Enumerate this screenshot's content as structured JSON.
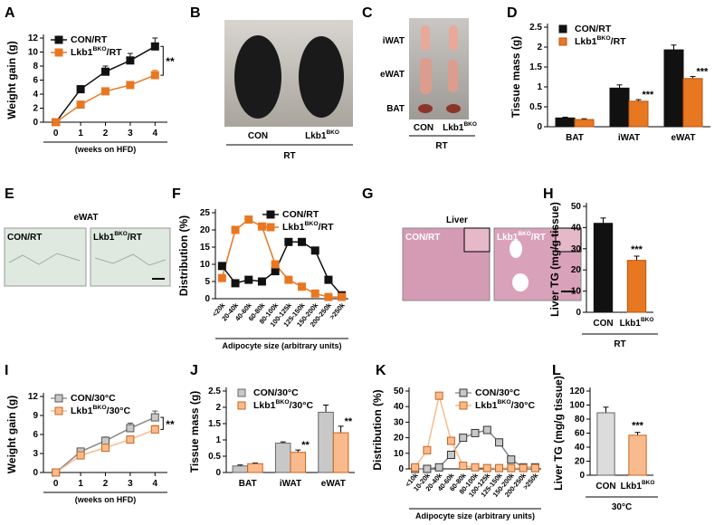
{
  "superscript": "BKO",
  "chart_data": [
    {
      "type": "line",
      "label": "A",
      "ylabel": "Weight gain (g)",
      "xlabel": "(weeks on HFD)",
      "x": [
        0,
        1,
        2,
        3,
        4
      ],
      "xlim": [
        -0.5,
        4.5
      ],
      "xticks": [
        0,
        1,
        2,
        3,
        4
      ],
      "ylim": [
        0,
        12
      ],
      "yticks": [
        0,
        2,
        4,
        6,
        8,
        10,
        12
      ],
      "legend": "upper left",
      "significance": "**",
      "series": [
        {
          "name": "CON/RT",
          "color": "#111111",
          "edgecolor": "#111111",
          "values": [
            0,
            4.7,
            7.2,
            8.8,
            10.8
          ],
          "errors": [
            0.2,
            0.5,
            0.8,
            1.0,
            1.2
          ]
        },
        {
          "name": "Lkb1BKO/RT",
          "color": "#e87722",
          "edgecolor": "#e87722",
          "values": [
            0,
            2.5,
            4.4,
            5.3,
            6.7
          ],
          "errors": [
            0.2,
            0.3,
            0.5,
            0.5,
            0.7
          ]
        }
      ]
    },
    {
      "type": "bar",
      "label": "D",
      "ylabel": "Tissue mass (g)",
      "categories": [
        "BAT",
        "iWAT",
        "eWAT"
      ],
      "ylim": [
        0,
        2.5
      ],
      "yticks": [
        0,
        0.5,
        1,
        1.5,
        2,
        2.5
      ],
      "legend": "upper left",
      "series": [
        {
          "name": "CON/RT",
          "color": "#111111",
          "edgecolor": "#111111",
          "values": [
            0.22,
            0.97,
            1.93
          ],
          "errors": [
            0.02,
            0.08,
            0.12
          ],
          "significance": [
            null,
            null,
            null
          ]
        },
        {
          "name": "Lkb1BKO/RT",
          "color": "#e87722",
          "edgecolor": "#b8560e",
          "values": [
            0.18,
            0.64,
            1.21
          ],
          "errors": [
            0.02,
            0.04,
            0.05
          ],
          "significance": [
            null,
            "***",
            "***"
          ]
        }
      ]
    },
    {
      "type": "line",
      "label": "F",
      "ylabel": "Distribution (%)",
      "xlabel": "Adipocyte size (arbitrary units)",
      "categories": [
        "<20k",
        "20-40k",
        "40-60k",
        "60-80k",
        "80-100k",
        "100-125k",
        "125-150k",
        "150-200k",
        "200-250k",
        ">250k"
      ],
      "ylim": [
        0,
        25
      ],
      "yticks": [
        0,
        5,
        10,
        15,
        20,
        25
      ],
      "legend": "upper right",
      "series": [
        {
          "name": "CON/RT",
          "color": "#111111",
          "edgecolor": "#111111",
          "values": [
            9.5,
            4.5,
            5.5,
            5,
            8,
            16.5,
            16.5,
            14,
            5.5,
            1
          ]
        },
        {
          "name": "Lkb1BKO/RT",
          "color": "#e87722",
          "edgecolor": "#e87722",
          "values": [
            6,
            20,
            23,
            21,
            10,
            5.5,
            3.5,
            1.5,
            0.5,
            0.5
          ]
        }
      ]
    },
    {
      "type": "bar",
      "label": "H",
      "ylabel": "Liver TG (mg/g tissue)",
      "group_label": "RT",
      "categories": [
        "CON",
        "Lkb1BKO"
      ],
      "values": [
        42,
        24.5
      ],
      "errors": [
        2.5,
        2
      ],
      "colors": [
        "#111111",
        "#e87722"
      ],
      "edgecolors": [
        "#111111",
        "#b8560e"
      ],
      "significance": [
        null,
        "***"
      ],
      "ylim": [
        0,
        50
      ],
      "yticks": [
        0,
        10,
        20,
        30,
        40,
        50
      ]
    },
    {
      "type": "line",
      "label": "I",
      "ylabel": "Weight gain (g)",
      "xlabel": "(weeks on HFD)",
      "x": [
        0,
        1,
        2,
        3,
        4
      ],
      "xlim": [
        -0.5,
        4.5
      ],
      "xticks": [
        0,
        1,
        2,
        3,
        4
      ],
      "ylim": [
        0,
        12
      ],
      "yticks": [
        0,
        3,
        6,
        9,
        12
      ],
      "legend": "upper left",
      "significance": "**",
      "series": [
        {
          "name": "CON/30°C",
          "color": "#c8c8c8",
          "edgecolor": "#555555",
          "values": [
            0,
            3.3,
            5,
            7,
            8.7
          ],
          "errors": [
            0.3,
            0.5,
            0.6,
            0.8,
            1.0
          ]
        },
        {
          "name": "Lkb1BKO/30°C",
          "color": "#f9bb8d",
          "edgecolor": "#c8641c",
          "values": [
            0,
            2.7,
            3.9,
            5.2,
            6.8
          ],
          "errors": [
            0.2,
            0.3,
            0.4,
            0.5,
            0.6
          ]
        }
      ]
    },
    {
      "type": "bar",
      "label": "J",
      "ylabel": "Tissue mass (g)",
      "categories": [
        "BAT",
        "iWAT",
        "eWAT"
      ],
      "ylim": [
        0,
        2.5
      ],
      "yticks": [
        0,
        0.5,
        1,
        1.5,
        2,
        2.5
      ],
      "legend": "upper left",
      "series": [
        {
          "name": "CON/30°C",
          "color": "#c8c8c8",
          "edgecolor": "#666666",
          "values": [
            0.2,
            0.9,
            1.85
          ],
          "errors": [
            0.03,
            0.04,
            0.22
          ],
          "significance": [
            null,
            null,
            null
          ]
        },
        {
          "name": "Lkb1BKO/30°C",
          "color": "#f9bb8d",
          "edgecolor": "#c8641c",
          "values": [
            0.27,
            0.62,
            1.22
          ],
          "errors": [
            0.02,
            0.07,
            0.2
          ],
          "significance": [
            null,
            "**",
            "**"
          ]
        }
      ]
    },
    {
      "type": "line",
      "label": "K",
      "ylabel": "Distribution (%)",
      "xlabel": "Adipocyte size (arbitrary units)",
      "categories": [
        "<10k",
        "10-20k",
        "20-40k",
        "40-60k",
        "60-80k",
        "80-100k",
        "100-125k",
        "125-150k",
        "150-200k",
        "200-250k",
        ">250k"
      ],
      "ylim": [
        0,
        50
      ],
      "yticks": [
        0,
        10,
        20,
        30,
        40,
        50
      ],
      "legend": "upper right",
      "series": [
        {
          "name": "CON/30°C",
          "color": "#c8c8c8",
          "edgecolor": "#333333",
          "values": [
            0,
            0,
            1,
            9,
            20,
            23,
            25,
            17,
            6,
            1,
            1
          ]
        },
        {
          "name": "Lkb1BKO/30°C",
          "color": "#f9bb8d",
          "edgecolor": "#c8641c",
          "values": [
            1,
            12,
            47,
            18,
            2,
            1,
            0.5,
            0.5,
            0.5,
            0.5,
            0.5
          ]
        }
      ]
    },
    {
      "type": "bar",
      "label": "L",
      "ylabel": "Liver TG (mg/g tissue)",
      "group_label": "30°C",
      "categories": [
        "CON",
        "Lkb1BKO"
      ],
      "values": [
        89,
        57
      ],
      "errors": [
        8,
        4
      ],
      "colors": [
        "#dcdcdc",
        "#f9bb8d"
      ],
      "edgecolors": [
        "#666666",
        "#c8641c"
      ],
      "significance": [
        null,
        "***"
      ],
      "ylim": [
        0,
        120
      ],
      "yticks": [
        0,
        20,
        40,
        60,
        80,
        100,
        120
      ]
    }
  ],
  "images": [
    {
      "label": "B",
      "texts": [
        "CON",
        "Lkb1BKO",
        "RT"
      ]
    },
    {
      "label": "C",
      "texts": [
        "iWAT",
        "eWAT",
        "BAT",
        "CON",
        "Lkb1BKO",
        "RT"
      ]
    },
    {
      "label": "E",
      "texts": [
        "eWAT",
        "CON/RT",
        "Lkb1BKO/RT"
      ]
    },
    {
      "label": "G",
      "texts": [
        "Liver",
        "CON/RT",
        "Lkb1BKO/RT"
      ]
    }
  ]
}
